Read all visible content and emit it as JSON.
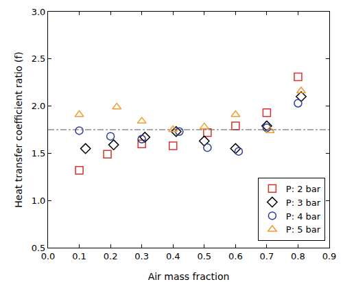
{
  "chart_data": {
    "type": "scatter",
    "x_label": "Air mass fraction",
    "y_label": "Heat transfer coefficient ratio (f)",
    "xlim": [
      0,
      0.9
    ],
    "xticks": [
      {
        "value": 0,
        "label": "0.0"
      },
      0.1,
      0.2,
      0.3,
      0.4,
      0.5,
      0.6,
      0.7,
      0.8,
      0.9
    ],
    "ylim": [
      0.5,
      3.0
    ],
    "yticks": [
      0.5,
      {
        "value": 1.0,
        "label": "1.0"
      },
      1.5,
      {
        "value": 2.0,
        "label": "2.0"
      },
      2.5,
      {
        "value": 3.0,
        "label": "3.0"
      }
    ],
    "grid": false,
    "legend": "lower right",
    "reference_line": {
      "value": 1.75,
      "line_style": "dashdot",
      "color": "#555555"
    },
    "series": [
      {
        "name": "P: 2 bar",
        "color": "#d9312b",
        "marker": "square-open",
        "x": [
          0.1,
          0.19,
          0.3,
          0.4,
          0.51,
          0.6,
          0.7,
          0.8
        ],
        "values": [
          1.32,
          1.49,
          1.6,
          1.58,
          1.72,
          1.79,
          1.93,
          2.31
        ]
      },
      {
        "name": "P: 3 bar",
        "color": "#000000",
        "marker": "diamond-open",
        "x": [
          0.12,
          0.21,
          0.31,
          0.41,
          0.5,
          0.6,
          0.7,
          0.81
        ],
        "values": [
          1.55,
          1.59,
          1.67,
          1.73,
          1.63,
          1.55,
          1.79,
          2.1
        ]
      },
      {
        "name": "P: 4 bar",
        "color": "#2e3d99",
        "marker": "circle-open",
        "x": [
          0.1,
          0.2,
          0.3,
          0.42,
          0.51,
          0.61,
          0.7,
          0.8
        ],
        "values": [
          1.74,
          1.68,
          1.65,
          1.73,
          1.56,
          1.52,
          1.77,
          2.03
        ]
      },
      {
        "name": "P: 5 bar",
        "color": "#f39a33",
        "marker": "triangle-up-open",
        "x": [
          0.1,
          0.22,
          0.3,
          0.4,
          0.5,
          0.6,
          0.71,
          0.81
        ],
        "values": [
          1.91,
          1.99,
          1.84,
          1.75,
          1.78,
          1.91,
          1.74,
          2.16
        ]
      }
    ]
  }
}
